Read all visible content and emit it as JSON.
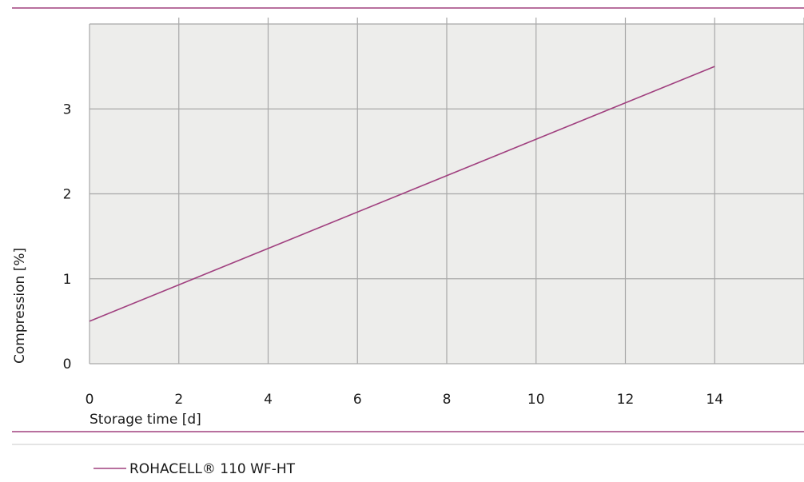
{
  "chart_data": {
    "type": "line",
    "title": "",
    "xlabel": "Storage time [d]",
    "ylabel": "Compression [%]",
    "x_ticks": [
      "0",
      "2",
      "4",
      "6",
      "8",
      "10",
      "12",
      "14"
    ],
    "y_ticks": [
      "0",
      "1",
      "2",
      "3"
    ],
    "xlim": [
      0,
      16
    ],
    "ylim": [
      0,
      4
    ],
    "grid": true,
    "legend_position": "bottom-left",
    "series": [
      {
        "name": "ROHACELL® 110 WF-HT",
        "x": [
          0,
          14
        ],
        "y": [
          0.5,
          3.5
        ]
      }
    ]
  },
  "colors": {
    "accent": "#a0407f",
    "line": "#a0407f",
    "plot_background": "#ededeb",
    "grid": "#a8a8a8"
  }
}
